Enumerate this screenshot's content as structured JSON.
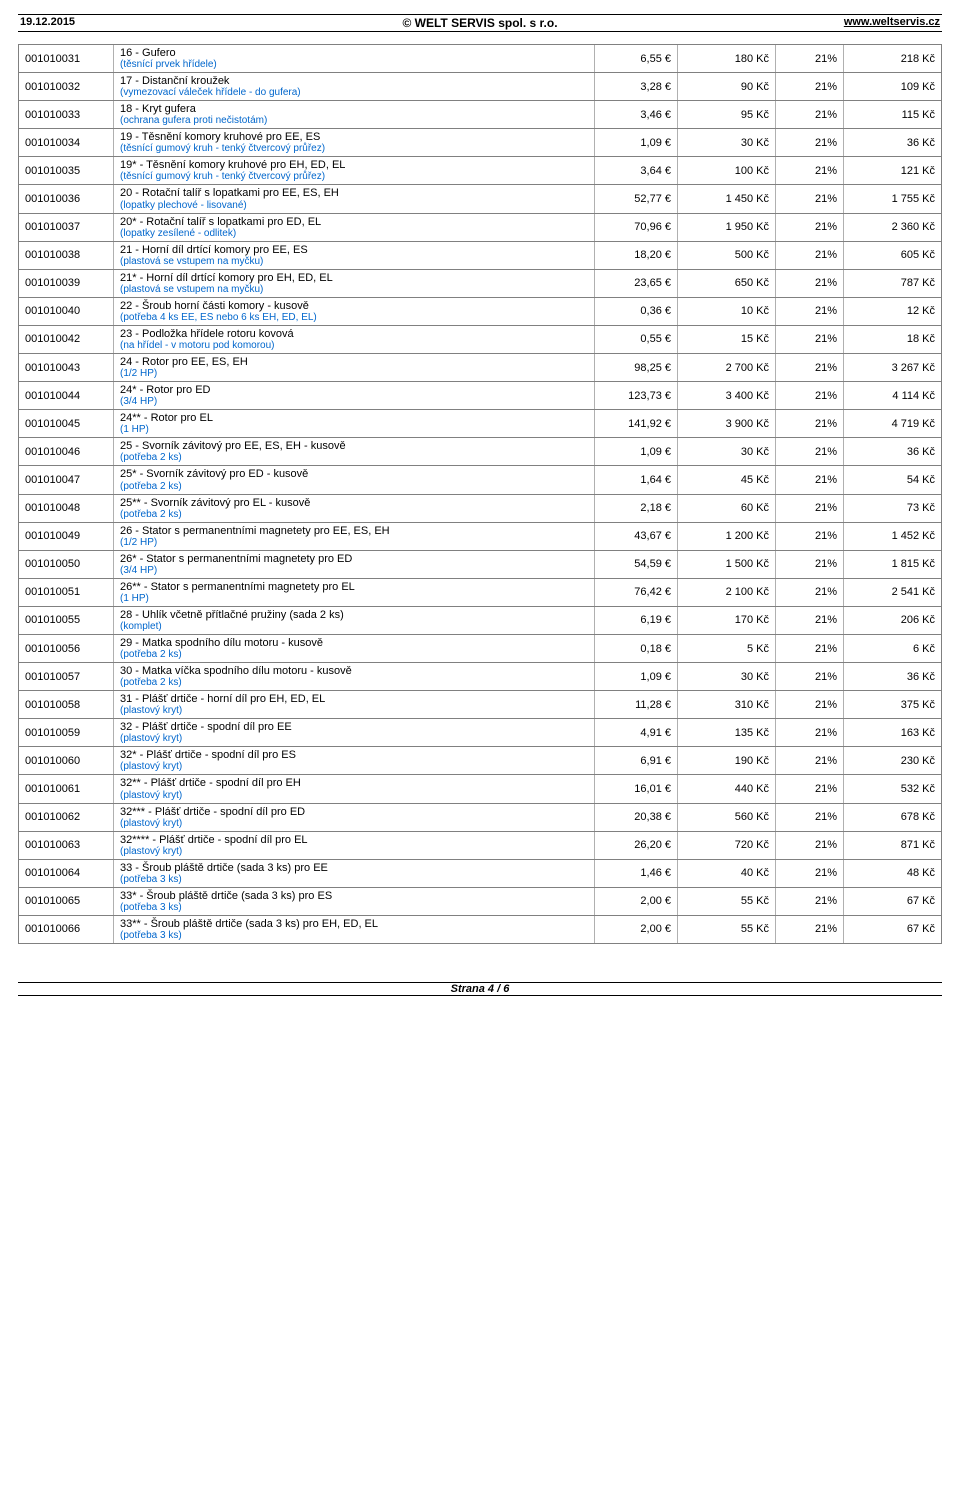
{
  "header": {
    "date": "19.12.2015",
    "company": "© WELT SERVIS spol. s r.o.",
    "url": "www.weltservis.cz"
  },
  "footer": "Strana 4 / 6",
  "rows": [
    {
      "code": "001010031",
      "title": "16 - Gufero",
      "sub": "(těsnící prvek hřídele)",
      "eur": "6,55 €",
      "czk": "180 Kč",
      "vat": "21%",
      "czk2": "218 Kč"
    },
    {
      "code": "001010032",
      "title": "17 - Distanční kroužek",
      "sub": "(vymezovací váleček hřídele - do gufera)",
      "eur": "3,28 €",
      "czk": "90 Kč",
      "vat": "21%",
      "czk2": "109 Kč"
    },
    {
      "code": "001010033",
      "title": "18 - Kryt gufera",
      "sub": "(ochrana gufera proti nečistotám)",
      "eur": "3,46 €",
      "czk": "95 Kč",
      "vat": "21%",
      "czk2": "115 Kč"
    },
    {
      "code": "001010034",
      "title": "19 - Těsnění komory kruhové pro EE, ES",
      "sub": "(těsnící gumový kruh - tenký čtvercový průřez)",
      "eur": "1,09 €",
      "czk": "30 Kč",
      "vat": "21%",
      "czk2": "36 Kč"
    },
    {
      "code": "001010035",
      "title": "19* - Těsnění komory kruhové pro EH, ED, EL",
      "sub": "(těsnící gumový kruh - tenký čtvercový průřez)",
      "eur": "3,64 €",
      "czk": "100 Kč",
      "vat": "21%",
      "czk2": "121 Kč"
    },
    {
      "code": "001010036",
      "title": "20 - Rotační talíř s lopatkami pro EE, ES, EH",
      "sub": "(lopatky plechové - lisované)",
      "eur": "52,77 €",
      "czk": "1 450 Kč",
      "vat": "21%",
      "czk2": "1 755 Kč"
    },
    {
      "code": "001010037",
      "title": "20* - Rotační talíř s lopatkami pro ED, EL",
      "sub": "(lopatky zesílené - odlitek)",
      "eur": "70,96 €",
      "czk": "1 950 Kč",
      "vat": "21%",
      "czk2": "2 360 Kč"
    },
    {
      "code": "001010038",
      "title": "21 - Horní díl drtící komory pro EE, ES",
      "sub": "(plastová se vstupem na myčku)",
      "eur": "18,20 €",
      "czk": "500 Kč",
      "vat": "21%",
      "czk2": "605 Kč"
    },
    {
      "code": "001010039",
      "title": "21* - Horní díl drtící komory pro EH, ED, EL",
      "sub": "(plastová se vstupem na myčku)",
      "eur": "23,65 €",
      "czk": "650 Kč",
      "vat": "21%",
      "czk2": "787 Kč"
    },
    {
      "code": "001010040",
      "title": "22 - Šroub horní části komory - kusově",
      "sub": "(potřeba 4 ks EE, ES nebo 6 ks EH, ED, EL)",
      "eur": "0,36 €",
      "czk": "10 Kč",
      "vat": "21%",
      "czk2": "12 Kč"
    },
    {
      "code": "001010042",
      "title": "23 - Podložka hřídele rotoru kovová",
      "sub": "(na hřídel - v motoru pod komorou)",
      "eur": "0,55 €",
      "czk": "15 Kč",
      "vat": "21%",
      "czk2": "18 Kč"
    },
    {
      "code": "001010043",
      "title": "24 - Rotor pro EE, ES, EH",
      "sub": "(1/2 HP)",
      "eur": "98,25 €",
      "czk": "2 700 Kč",
      "vat": "21%",
      "czk2": "3 267 Kč"
    },
    {
      "code": "001010044",
      "title": "24* - Rotor pro ED",
      "sub": "(3/4 HP)",
      "eur": "123,73 €",
      "czk": "3 400 Kč",
      "vat": "21%",
      "czk2": "4 114 Kč"
    },
    {
      "code": "001010045",
      "title": "24** - Rotor pro EL",
      "sub": "(1 HP)",
      "eur": "141,92 €",
      "czk": "3 900 Kč",
      "vat": "21%",
      "czk2": "4 719 Kč"
    },
    {
      "code": "001010046",
      "title": "25 - Svorník závitový pro EE, ES, EH - kusově",
      "sub": "(potřeba 2 ks)",
      "eur": "1,09 €",
      "czk": "30 Kč",
      "vat": "21%",
      "czk2": "36 Kč"
    },
    {
      "code": "001010047",
      "title": "25* - Svorník závitový pro ED - kusově",
      "sub": "(potřeba 2 ks)",
      "eur": "1,64 €",
      "czk": "45 Kč",
      "vat": "21%",
      "czk2": "54 Kč"
    },
    {
      "code": "001010048",
      "title": "25** - Svorník závitový pro EL - kusově",
      "sub": "(potřeba 2 ks)",
      "eur": "2,18 €",
      "czk": "60 Kč",
      "vat": "21%",
      "czk2": "73 Kč"
    },
    {
      "code": "001010049",
      "title": "26 - Stator s permanentními magnetety pro EE, ES, EH",
      "sub": "(1/2 HP)",
      "eur": "43,67 €",
      "czk": "1 200 Kč",
      "vat": "21%",
      "czk2": "1 452 Kč"
    },
    {
      "code": "001010050",
      "title": "26* - Stator s permanentními magnetety pro ED",
      "sub": "(3/4 HP)",
      "eur": "54,59 €",
      "czk": "1 500 Kč",
      "vat": "21%",
      "czk2": "1 815 Kč"
    },
    {
      "code": "001010051",
      "title": "26** - Stator s permanentními magnetety pro EL",
      "sub": "(1 HP)",
      "eur": "76,42 €",
      "czk": "2 100 Kč",
      "vat": "21%",
      "czk2": "2 541 Kč"
    },
    {
      "code": "001010055",
      "title": "28 - Uhlík včetně přítlačné pružiny (sada 2 ks)",
      "sub": "(komplet)",
      "eur": "6,19 €",
      "czk": "170 Kč",
      "vat": "21%",
      "czk2": "206 Kč"
    },
    {
      "code": "001010056",
      "title": "29 - Matka spodního dílu motoru - kusově",
      "sub": "(potřeba 2 ks)",
      "eur": "0,18 €",
      "czk": "5 Kč",
      "vat": "21%",
      "czk2": "6 Kč"
    },
    {
      "code": "001010057",
      "title": "30 - Matka víčka spodního dílu motoru - kusově",
      "sub": "(potřeba 2 ks)",
      "eur": "1,09 €",
      "czk": "30 Kč",
      "vat": "21%",
      "czk2": "36 Kč"
    },
    {
      "code": "001010058",
      "title": "31 - Plášť drtiče - horní díl pro EH, ED, EL",
      "sub": "(plastový kryt)",
      "eur": "11,28 €",
      "czk": "310 Kč",
      "vat": "21%",
      "czk2": "375 Kč"
    },
    {
      "code": "001010059",
      "title": "32 - Plášť drtiče - spodní díl pro EE",
      "sub": "(plastový kryt)",
      "eur": "4,91 €",
      "czk": "135 Kč",
      "vat": "21%",
      "czk2": "163 Kč"
    },
    {
      "code": "001010060",
      "title": "32* - Plášť drtiče - spodní díl pro ES",
      "sub": "(plastový kryt)",
      "eur": "6,91 €",
      "czk": "190 Kč",
      "vat": "21%",
      "czk2": "230 Kč"
    },
    {
      "code": "001010061",
      "title": "32** - Plášť drtiče - spodní díl pro EH",
      "sub": "(plastový kryt)",
      "eur": "16,01 €",
      "czk": "440 Kč",
      "vat": "21%",
      "czk2": "532 Kč"
    },
    {
      "code": "001010062",
      "title": "32*** - Plášť drtiče - spodní díl pro ED",
      "sub": "(plastový kryt)",
      "eur": "20,38 €",
      "czk": "560 Kč",
      "vat": "21%",
      "czk2": "678 Kč"
    },
    {
      "code": "001010063",
      "title": "32**** - Plášť drtiče - spodní díl pro EL",
      "sub": "(plastový kryt)",
      "eur": "26,20 €",
      "czk": "720 Kč",
      "vat": "21%",
      "czk2": "871 Kč"
    },
    {
      "code": "001010064",
      "title": "33 - Šroub pláště drtiče (sada 3 ks) pro EE",
      "sub": "(potřeba 3 ks)",
      "eur": "1,46 €",
      "czk": "40 Kč",
      "vat": "21%",
      "czk2": "48 Kč"
    },
    {
      "code": "001010065",
      "title": "33* - Šroub pláště drtiče (sada 3 ks) pro ES",
      "sub": "(potřeba 3 ks)",
      "eur": "2,00 €",
      "czk": "55 Kč",
      "vat": "21%",
      "czk2": "67 Kč"
    },
    {
      "code": "001010066",
      "title": "33** - Šroub pláště drtiče (sada 3 ks) pro EH, ED, EL",
      "sub": "(potřeba 3 ks)",
      "eur": "2,00 €",
      "czk": "55 Kč",
      "vat": "21%",
      "czk2": "67 Kč"
    }
  ]
}
